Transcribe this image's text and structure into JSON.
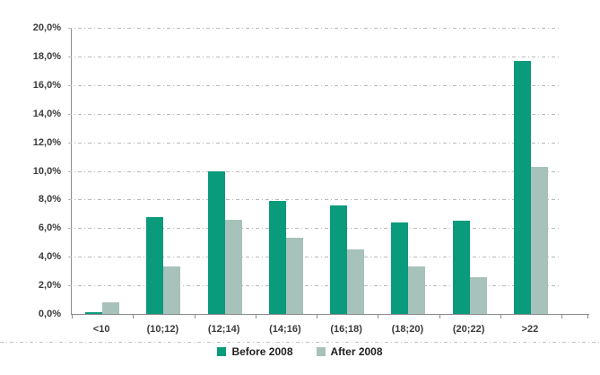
{
  "chart_data": {
    "type": "bar",
    "title": "",
    "xlabel": "",
    "ylabel": "",
    "categories": [
      "<10",
      "(10;12)",
      "(12;14)",
      "(14;16)",
      "(16;18)",
      "(18;20)",
      "(20;22)",
      ">22"
    ],
    "series": [
      {
        "name": "Before 2008",
        "color": "#0a9a7c",
        "values": [
          0.1,
          6.8,
          10.0,
          7.9,
          7.6,
          6.4,
          6.5,
          17.7
        ]
      },
      {
        "name": "After 2008",
        "color": "#a7c2bb",
        "values": [
          0.8,
          3.3,
          6.6,
          5.3,
          4.5,
          3.3,
          2.6,
          10.3
        ]
      }
    ],
    "ylim": [
      0,
      20
    ],
    "ytick_step": 2,
    "ytick_labels": [
      "0,0%",
      "2,0%",
      "4,0%",
      "6,0%",
      "8,0%",
      "10,0%",
      "12,0%",
      "14,0%",
      "16,0%",
      "18,0%",
      "20,0%"
    ],
    "grid": "horizontal dash-dot",
    "legend_position": "bottom-center"
  },
  "legend": {
    "items": [
      {
        "label": "Before 2008",
        "color": "#0a9a7c"
      },
      {
        "label": "After 2008",
        "color": "#a7c2bb"
      }
    ]
  },
  "colors": {
    "axis": "#8c8c8c",
    "gridline": "#b9b9b9",
    "label_text": "#3a3a3a",
    "background": "#ffffff"
  }
}
